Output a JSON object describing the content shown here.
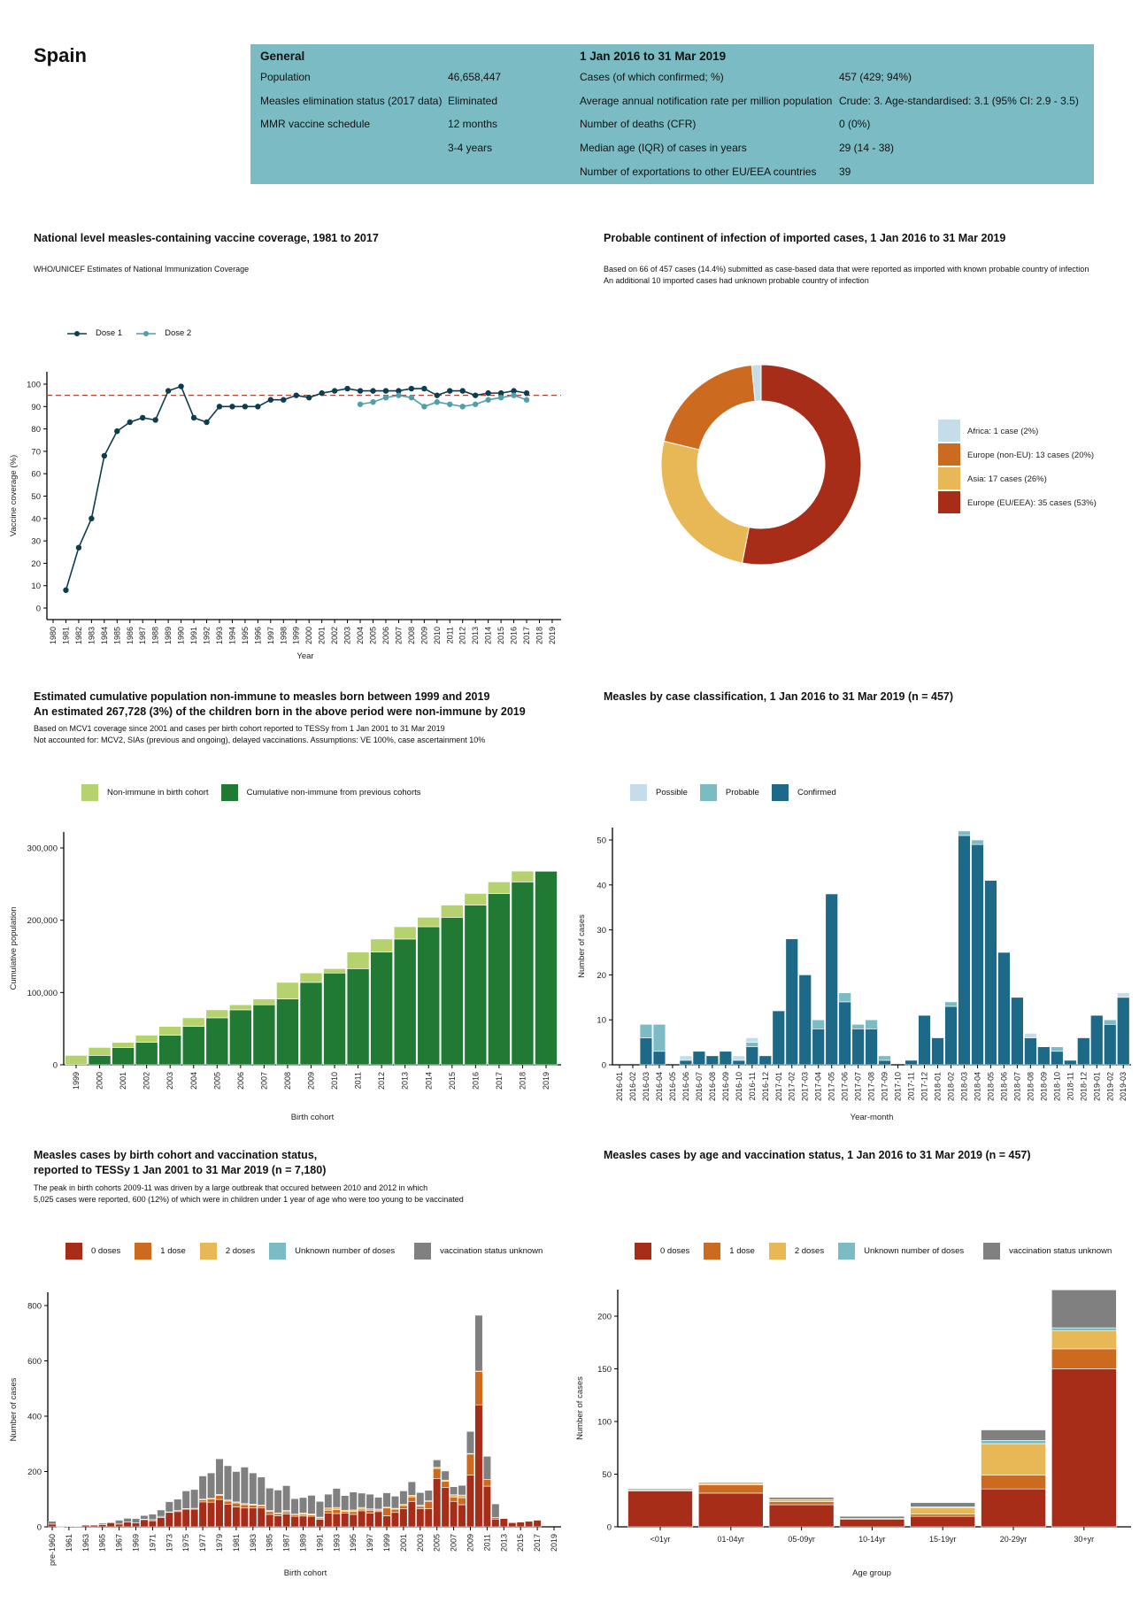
{
  "country": "Spain",
  "infobox": {
    "general_header": "General",
    "period_header": "1 Jan 2016 to 31 Mar 2019",
    "general_rows": [
      {
        "label": "Population",
        "value": "46,658,447"
      },
      {
        "label": "Measles elimination status (2017 data)",
        "value": "Eliminated"
      },
      {
        "label": "MMR vaccine schedule",
        "value": "12 months"
      },
      {
        "label": "",
        "value": "3-4 years"
      }
    ],
    "period_rows": [
      {
        "label": "Cases (of which confirmed; %)",
        "value": "457 (429; 94%)"
      },
      {
        "label": "Average annual notification rate per million population",
        "value": "Crude: 3. Age-standardised: 3.1 (95% CI: 2.9 - 3.5)"
      },
      {
        "label": "Number of deaths (CFR)",
        "value": "0 (0%)"
      },
      {
        "label": "Median age (IQR) of cases in years",
        "value": "29 (14 - 38)"
      },
      {
        "label": "Number of exportations to other EU/EEA countries",
        "value": "39"
      }
    ],
    "color": "#7bbcc4"
  },
  "sections": {
    "coverage": {
      "title": "National level measles-containing vaccine coverage, 1981 to 2017",
      "note": "WHO/UNICEF Estimates of National Immunization Coverage"
    },
    "imported": {
      "title": "Probable continent of infection of imported cases, 1 Jan 2016 to 31 Mar 2019",
      "note1": "Based on 66 of 457 cases (14.4%) submitted as case-based data that were reported as imported with known probable country of infection",
      "note2": "An additional 10 imported cases had unknown probable country of infection"
    },
    "nonimmune": {
      "title1": "Estimated cumulative population non-immune to measles born between 1999 and 2019",
      "title2": "An estimated 267,728 (3%) of the children born in the above period were non-immune by 2019",
      "note1": "Based on MCV1 coverage since 2001 and cases per birth cohort reported to TESSy from 1 Jan 2001 to 31 Mar 2019",
      "note2": "Not accounted for: MCV2, SIAs (previous and ongoing), delayed vaccinations. Assumptions: VE 100%, case ascertainment 10%"
    },
    "classification": {
      "title": "Measles by case classification, 1 Jan 2016 to 31 Mar 2019 (n = 457)"
    },
    "birthcohort": {
      "title1": "Measles cases by birth cohort and vaccination status,",
      "title2": "reported to TESSy 1 Jan 2001 to 31 Mar 2019 (n = 7,180)",
      "note1": "The peak in birth cohorts 2009-11 was driven by a large outbreak that occured between 2010 and 2012 in which",
      "note2": "5,025 cases were reported, 600 (12%) of which were in children under 1 year of age who were too young to be vaccinated"
    },
    "age": {
      "title": "Measles cases by age and vaccination status, 1 Jan 2016 to 31 Mar 2019 (n = 457)"
    }
  },
  "chart_data": [
    {
      "type": "line",
      "xlabel": "Year",
      "ylabel": "Vaccine coverage (%)",
      "x_ticks": [
        1980,
        1981,
        1982,
        1983,
        1984,
        1985,
        1986,
        1987,
        1988,
        1989,
        1990,
        1991,
        1992,
        1993,
        1994,
        1995,
        1996,
        1997,
        1998,
        1999,
        2000,
        2001,
        2002,
        2003,
        2004,
        2005,
        2006,
        2007,
        2008,
        2009,
        2010,
        2011,
        2012,
        2013,
        2014,
        2015,
        2016,
        2017,
        2018,
        2019
      ],
      "y_ticks": [
        0,
        10,
        20,
        30,
        40,
        50,
        60,
        70,
        80,
        90,
        100
      ],
      "ylim": [
        0,
        100
      ],
      "target_line": 95,
      "target_color": "#b5432f",
      "series": [
        {
          "name": "Dose 1",
          "color": "#0d3d4f",
          "start": 1981,
          "values": [
            8,
            27,
            40,
            68,
            79,
            83,
            85,
            84,
            97,
            99,
            85,
            83,
            90,
            90,
            90,
            90,
            93,
            93,
            95,
            94,
            96,
            97,
            98,
            97,
            97,
            97,
            97,
            98,
            98,
            95,
            97,
            97,
            95,
            96,
            96,
            97,
            96
          ]
        },
        {
          "name": "Dose 2",
          "color": "#4f9fad",
          "start": 2004,
          "values": [
            91,
            92,
            94,
            95,
            94,
            90,
            92,
            91,
            90,
            91,
            93,
            94,
            95,
            93
          ]
        }
      ]
    },
    {
      "type": "pie",
      "donut": true,
      "slices": [
        {
          "label": "Africa: 1 case (2%)",
          "value": 1,
          "color": "#c5dde8"
        },
        {
          "label": "Europe (non-EU): 13 cases (20%)",
          "value": 13,
          "color": "#cc6a1f"
        },
        {
          "label": "Asia: 17 cases (26%)",
          "value": 17,
          "color": "#e8b856"
        },
        {
          "label": "Europe (EU/EEA): 35 cases (53%)",
          "value": 35,
          "color": "#a82d18"
        }
      ],
      "draw_order_clockwise_from_top": [
        "Europe (EU/EEA): 35 cases (53%)",
        "Asia: 17 cases (26%)",
        "Europe (non-EU): 13 cases (20%)",
        "Africa: 1 case (2%)"
      ],
      "legend": "right"
    },
    {
      "type": "bar",
      "stacked": true,
      "xlabel": "Birth cohort",
      "ylabel": "Cumulative population",
      "categories": [
        "1999",
        "2000",
        "2001",
        "2002",
        "2003",
        "2004",
        "2005",
        "2006",
        "2007",
        "2008",
        "2009",
        "2010",
        "2011",
        "2012",
        "2013",
        "2014",
        "2015",
        "2016",
        "2017",
        "2018",
        "2019"
      ],
      "y_ticks": [
        0,
        100000,
        200000,
        300000
      ],
      "y_tick_labels": [
        "0",
        "100,000",
        "200,000",
        "300,000"
      ],
      "ylim": [
        0,
        320000
      ],
      "legend": "top-left",
      "series": [
        {
          "name": "Cumulative non-immune from previous cohorts",
          "color": "#217a34",
          "values": [
            0,
            13000,
            24000,
            31000,
            41000,
            53000,
            65000,
            76000,
            83000,
            91000,
            114000,
            127000,
            133000,
            156000,
            174000,
            191000,
            204000,
            221000,
            237000,
            253000,
            267728
          ]
        },
        {
          "name": "Non-immune in birth cohort",
          "color": "#b5d26e",
          "values": [
            13000,
            11000,
            7000,
            10000,
            12000,
            12000,
            11000,
            7000,
            8000,
            23000,
            13000,
            6000,
            23000,
            18000,
            17000,
            13000,
            17000,
            16000,
            16000,
            15000,
            0
          ]
        }
      ]
    },
    {
      "type": "bar",
      "stacked": true,
      "xlabel": "Year-month",
      "ylabel": "Number of cases",
      "categories": [
        "2016-01",
        "2016-02",
        "2016-03",
        "2016-04",
        "2016-05",
        "2016-06",
        "2016-07",
        "2016-08",
        "2016-09",
        "2016-10",
        "2016-11",
        "2016-12",
        "2017-01",
        "2017-02",
        "2017-03",
        "2017-04",
        "2017-05",
        "2017-06",
        "2017-07",
        "2017-08",
        "2017-09",
        "2017-10",
        "2017-11",
        "2017-12",
        "2018-01",
        "2018-02",
        "2018-03",
        "2018-04",
        "2018-05",
        "2018-06",
        "2018-07",
        "2018-08",
        "2018-09",
        "2018-10",
        "2018-11",
        "2018-12",
        "2019-01",
        "2019-02",
        "2019-03"
      ],
      "y_ticks": [
        0,
        10,
        20,
        30,
        40,
        50
      ],
      "ylim": [
        0,
        52
      ],
      "legend": "top-left",
      "series": [
        {
          "name": "Confirmed",
          "color": "#1c6a87",
          "values": [
            0,
            0,
            6,
            3,
            0,
            1,
            3,
            2,
            3,
            1,
            4,
            2,
            12,
            28,
            20,
            8,
            38,
            14,
            8,
            8,
            1,
            0,
            1,
            11,
            6,
            13,
            51,
            49,
            41,
            25,
            15,
            6,
            4,
            3,
            1,
            6,
            11,
            9,
            15
          ]
        },
        {
          "name": "Probable",
          "color": "#7bbcc4",
          "values": [
            0,
            0,
            3,
            6,
            0,
            0,
            0,
            0,
            0,
            0,
            1,
            0,
            0,
            0,
            0,
            2,
            0,
            2,
            1,
            2,
            1,
            0,
            0,
            0,
            0,
            1,
            1,
            1,
            0,
            0,
            0,
            0,
            0,
            1,
            0,
            0,
            0,
            1,
            0
          ]
        },
        {
          "name": "Possible",
          "color": "#c5dde8",
          "values": [
            0,
            0,
            0,
            0,
            0,
            1,
            0,
            0,
            0,
            1,
            1,
            0,
            0,
            0,
            0,
            0,
            0,
            0,
            0,
            0,
            0,
            0,
            0,
            0,
            0,
            0,
            0,
            0,
            0,
            0,
            0,
            1,
            0,
            0,
            0,
            0,
            0,
            0,
            1
          ]
        }
      ]
    },
    {
      "type": "bar",
      "stacked": true,
      "xlabel": "Birth cohort",
      "ylabel": "Number of cases",
      "categories": [
        "pre-1960",
        "1960",
        "1961",
        "1962",
        "1963",
        "1964",
        "1965",
        "1966",
        "1967",
        "1968",
        "1969",
        "1970",
        "1971",
        "1972",
        "1973",
        "1974",
        "1975",
        "1976",
        "1977",
        "1978",
        "1979",
        "1980",
        "1981",
        "1982",
        "1983",
        "1984",
        "1985",
        "1986",
        "1987",
        "1988",
        "1989",
        "1990",
        "1991",
        "1992",
        "1993",
        "1994",
        "1995",
        "1996",
        "1997",
        "1998",
        "1999",
        "2000",
        "2001",
        "2002",
        "2003",
        "2004",
        "2005",
        "2006",
        "2007",
        "2008",
        "2009",
        "2010",
        "2011",
        "2012",
        "2013",
        "2014",
        "2015",
        "2016",
        "2017",
        "2018",
        "2019"
      ],
      "y_ticks": [
        0,
        200,
        400,
        600,
        800
      ],
      "ylim": [
        0,
        830
      ],
      "legend": "top-left",
      "series": [
        {
          "name": "0 doses",
          "color": "#a82d18",
          "values": [
            10,
            1,
            2,
            2,
            6,
            6,
            8,
            15,
            10,
            18,
            14,
            26,
            22,
            34,
            52,
            55,
            64,
            64,
            90,
            89,
            99,
            81,
            72,
            68,
            68,
            68,
            45,
            40,
            46,
            38,
            39,
            38,
            27,
            50,
            48,
            50,
            45,
            58,
            50,
            55,
            40,
            52,
            65,
            92,
            65,
            65,
            175,
            143,
            92,
            80,
            187,
            441,
            147,
            28,
            30,
            15,
            17,
            20,
            24,
            0,
            0
          ]
        },
        {
          "name": "1 dose",
          "color": "#cc6a1f",
          "values": [
            0,
            0,
            0,
            0,
            0,
            0,
            0,
            0,
            0,
            0,
            0,
            2,
            4,
            4,
            2,
            4,
            2,
            3,
            8,
            12,
            14,
            12,
            14,
            12,
            10,
            8,
            10,
            8,
            8,
            6,
            6,
            5,
            5,
            10,
            14,
            6,
            10,
            6,
            10,
            5,
            28,
            12,
            12,
            16,
            9,
            27,
            36,
            22,
            16,
            25,
            76,
            121,
            24,
            6,
            0,
            0,
            0,
            0,
            0,
            0,
            0
          ]
        },
        {
          "name": "2 doses",
          "color": "#e8b856",
          "values": [
            0,
            0,
            0,
            0,
            0,
            0,
            0,
            0,
            0,
            0,
            0,
            0,
            0,
            0,
            0,
            0,
            0,
            0,
            2,
            2,
            4,
            4,
            4,
            4,
            4,
            3,
            4,
            2,
            5,
            2,
            5,
            4,
            3,
            8,
            8,
            4,
            6,
            6,
            5,
            4,
            3,
            3,
            4,
            6,
            4,
            2,
            4,
            4,
            8,
            10,
            2,
            1,
            0,
            0,
            0,
            0,
            0,
            0,
            0,
            0,
            0
          ]
        },
        {
          "name": "Unknown number of doses",
          "color": "#7bbcc4",
          "values": [
            0,
            0,
            0,
            0,
            0,
            0,
            0,
            0,
            0,
            0,
            0,
            0,
            0,
            0,
            0,
            0,
            0,
            0,
            0,
            0,
            0,
            0,
            0,
            0,
            0,
            0,
            0,
            0,
            0,
            0,
            0,
            0,
            0,
            0,
            0,
            0,
            0,
            0,
            0,
            0,
            0,
            0,
            0,
            0,
            0,
            0,
            0,
            0,
            0,
            0,
            0,
            0,
            0,
            0,
            0,
            0,
            0,
            0,
            0,
            0,
            0
          ]
        },
        {
          "name": "vaccination status unknown",
          "color": "#808080",
          "values": [
            10,
            0,
            0,
            0,
            0,
            0,
            5,
            0,
            14,
            13,
            16,
            13,
            20,
            23,
            37,
            41,
            64,
            68,
            84,
            92,
            129,
            124,
            110,
            132,
            113,
            101,
            81,
            83,
            90,
            56,
            56,
            67,
            57,
            50,
            69,
            53,
            65,
            52,
            53,
            43,
            52,
            44,
            49,
            49,
            46,
            38,
            27,
            33,
            29,
            35,
            80,
            202,
            84,
            49,
            0,
            0,
            0,
            0,
            0,
            0,
            0
          ]
        }
      ]
    },
    {
      "type": "bar",
      "stacked": true,
      "xlabel": "Age group",
      "ylabel": "Number of cases",
      "categories": [
        "<01yr",
        "01-04yr",
        "05-09yr",
        "10-14yr",
        "15-19yr",
        "20-29yr",
        "30+yr"
      ],
      "y_ticks": [
        0,
        50,
        100,
        150,
        200
      ],
      "ylim": [
        0,
        225
      ],
      "legend": "top-left",
      "series": [
        {
          "name": "0 doses",
          "color": "#a82d18",
          "values": [
            34,
            32,
            21,
            7,
            10,
            36,
            150
          ]
        },
        {
          "name": "1 dose",
          "color": "#cc6a1f",
          "values": [
            1,
            8,
            3,
            1,
            2,
            13,
            19
          ]
        },
        {
          "name": "2 doses",
          "color": "#e8b856",
          "values": [
            0,
            1,
            2,
            0,
            6,
            30,
            17
          ]
        },
        {
          "name": "Unknown number of doses",
          "color": "#7bbcc4",
          "values": [
            0,
            0,
            0,
            0,
            1,
            3,
            3
          ]
        },
        {
          "name": "vaccination status unknown",
          "color": "#808080",
          "values": [
            1,
            1,
            2,
            2,
            4,
            10,
            36
          ]
        }
      ]
    }
  ]
}
